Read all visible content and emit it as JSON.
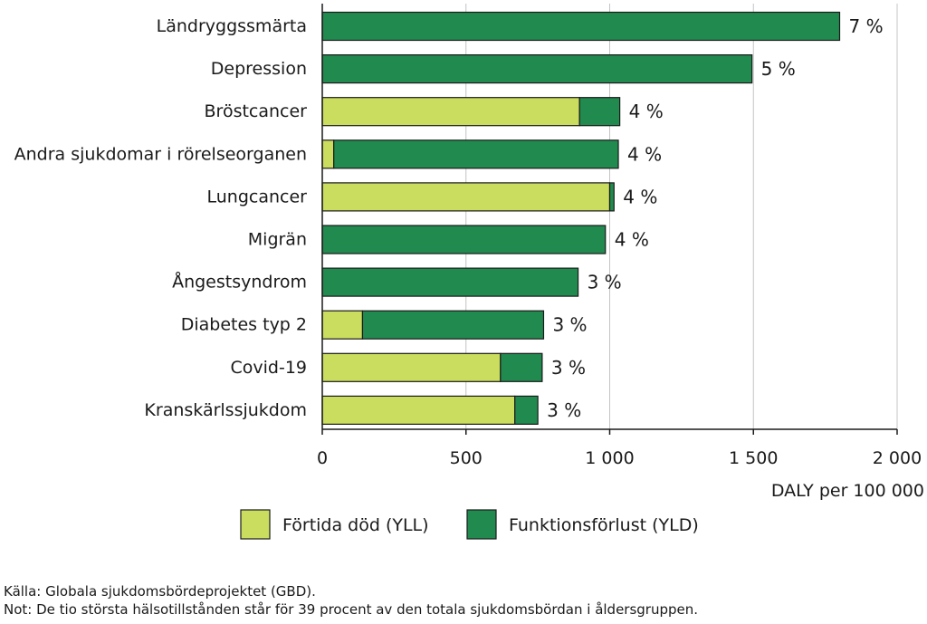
{
  "chart_data": {
    "type": "bar",
    "orientation": "horizontal",
    "stacked": true,
    "categories": [
      "Ländryggssmärta",
      "Depression",
      "Bröstcancer",
      "Andra sjukdomar i rörelseorganen",
      "Lungcancer",
      "Migrän",
      "Ångestsyndrom",
      "Diabetes typ 2",
      "Covid-19",
      "Kranskärlssjukdom"
    ],
    "series": [
      {
        "name": "Förtida död (YLL)",
        "color": "#cbdd5e",
        "values": [
          0,
          0,
          895,
          40,
          1000,
          0,
          0,
          140,
          620,
          670
        ]
      },
      {
        "name": "Funktionsförlust (YLD)",
        "color": "#218a4f",
        "values": [
          1800,
          1495,
          140,
          990,
          15,
          985,
          890,
          630,
          145,
          80
        ]
      }
    ],
    "data_labels": [
      "7 %",
      "5 %",
      "4 %",
      "4 %",
      "4 %",
      "4 %",
      "3 %",
      "3 %",
      "3 %",
      "3 %"
    ],
    "xlim": [
      0,
      2000
    ],
    "xticks": [
      0,
      500,
      1000,
      1500,
      2000
    ],
    "xtick_labels": [
      "0",
      "500",
      "1 000",
      "1 500",
      "2 000"
    ],
    "xlabel": "DALY per 100 000",
    "grid": "vertical",
    "legend_position": "bottom"
  },
  "footnotes": {
    "source": "Källa: Globala sjukdomsbördeprojektet (GBD).",
    "note": "Not: De tio största hälsotillstånden står för 39 procent av den totala sjukdomsbördan i åldersgruppen."
  }
}
